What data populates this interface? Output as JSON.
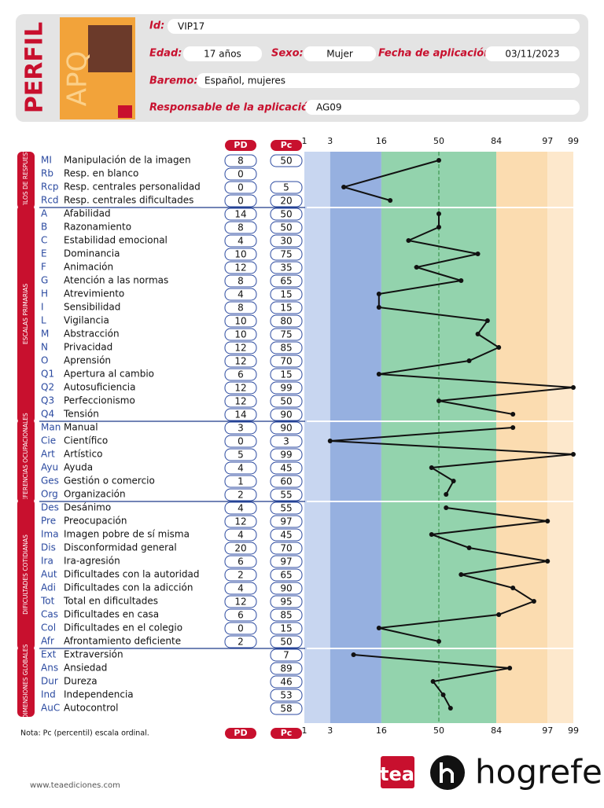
{
  "header": {
    "title": "PERFIL",
    "test": "APQ",
    "fields": [
      {
        "label": "Id:",
        "value": "VIP17"
      },
      {
        "label": "Edad:",
        "value": "17  años"
      },
      {
        "label": "Sexo:",
        "value": "Mujer"
      },
      {
        "label": "Fecha de aplicación:",
        "value": "03/11/2023"
      },
      {
        "label": "Baremo:",
        "value": "Español, mujeres"
      },
      {
        "label": "Responsable de la aplicación:",
        "value": "AG09"
      }
    ]
  },
  "columns": {
    "pd": "PD",
    "pc": "Pc"
  },
  "scale": {
    "ticks": [
      1,
      3,
      16,
      50,
      84,
      97,
      99
    ]
  },
  "groups": [
    {
      "title": "ESTILOS DE RESPUESTA",
      "rows": [
        {
          "code": "MI",
          "name": "Manipulación de la imagen",
          "pd": 8,
          "pc": 50
        },
        {
          "code": "Rb",
          "name": "Resp. en blanco",
          "pd": 0
        },
        {
          "code": "Rcp",
          "name": "Resp. centrales personalidad",
          "pd": 0,
          "pc": 5
        },
        {
          "code": "Rcd",
          "name": "Resp. centrales dificultades",
          "pd": 0,
          "pc": 20
        }
      ]
    },
    {
      "title": "ESCALAS PRIMARIAS",
      "rows": [
        {
          "code": "A",
          "name": "Afabilidad",
          "pd": 14,
          "pc": 50
        },
        {
          "code": "B",
          "name": "Razonamiento",
          "pd": 8,
          "pc": 50
        },
        {
          "code": "C",
          "name": "Estabilidad emocional",
          "pd": 4,
          "pc": 30
        },
        {
          "code": "E",
          "name": "Dominancia",
          "pd": 10,
          "pc": 75
        },
        {
          "code": "F",
          "name": "Animación",
          "pd": 12,
          "pc": 35
        },
        {
          "code": "G",
          "name": "Atención a las normas",
          "pd": 8,
          "pc": 65
        },
        {
          "code": "H",
          "name": "Atrevimiento",
          "pd": 4,
          "pc": 15
        },
        {
          "code": "I",
          "name": "Sensibilidad",
          "pd": 8,
          "pc": 15
        },
        {
          "code": "L",
          "name": "Vigilancia",
          "pd": 10,
          "pc": 80
        },
        {
          "code": "M",
          "name": "Abstracción",
          "pd": 10,
          "pc": 75
        },
        {
          "code": "N",
          "name": "Privacidad",
          "pd": 12,
          "pc": 85
        },
        {
          "code": "O",
          "name": "Aprensión",
          "pd": 12,
          "pc": 70
        },
        {
          "code": "Q1",
          "name": "Apertura al cambio",
          "pd": 6,
          "pc": 15
        },
        {
          "code": "Q2",
          "name": "Autosuficiencia",
          "pd": 12,
          "pc": 99
        },
        {
          "code": "Q3",
          "name": "Perfeccionismo",
          "pd": 12,
          "pc": 50
        },
        {
          "code": "Q4",
          "name": "Tensión",
          "pd": 14,
          "pc": 90
        }
      ]
    },
    {
      "title": "PREFERENCIAS OCUPACIONALES",
      "rows": [
        {
          "code": "Man",
          "name": "Manual",
          "pd": 3,
          "pc": 90
        },
        {
          "code": "Cie",
          "name": "Científico",
          "pd": 0,
          "pc": 3
        },
        {
          "code": "Art",
          "name": "Artístico",
          "pd": 5,
          "pc": 99
        },
        {
          "code": "Ayu",
          "name": "Ayuda",
          "pd": 4,
          "pc": 45
        },
        {
          "code": "Ges",
          "name": "Gestión o comercio",
          "pd": 1,
          "pc": 60
        },
        {
          "code": "Org",
          "name": "Organización",
          "pd": 2,
          "pc": 55
        }
      ]
    },
    {
      "title": "DIFICULTADES COTIDIANAS",
      "rows": [
        {
          "code": "Des",
          "name": "Desánimo",
          "pd": 4,
          "pc": 55
        },
        {
          "code": "Pre",
          "name": "Preocupación",
          "pd": 12,
          "pc": 97
        },
        {
          "code": "Ima",
          "name": "Imagen pobre de sí misma",
          "pd": 4,
          "pc": 45
        },
        {
          "code": "Dis",
          "name": "Disconformidad general",
          "pd": 20,
          "pc": 70
        },
        {
          "code": "Ira",
          "name": "Ira-agresión",
          "pd": 6,
          "pc": 97
        },
        {
          "code": "Aut",
          "name": "Dificultades con la autoridad",
          "pd": 2,
          "pc": 65
        },
        {
          "code": "Adi",
          "name": "Dificultades con la adicción",
          "pd": 4,
          "pc": 90
        },
        {
          "code": "Tot",
          "name": "Total en dificultades",
          "pd": 12,
          "pc": 95
        },
        {
          "code": "Cas",
          "name": "Dificultades en casa",
          "pd": 6,
          "pc": 85
        },
        {
          "code": "Col",
          "name": "Dificultades en el colegio",
          "pd": 0,
          "pc": 15
        },
        {
          "code": "Afr",
          "name": "Afrontamiento deficiente",
          "pd": 2,
          "pc": 50
        }
      ]
    },
    {
      "title": "DIMENSIONES GLOBALES",
      "rows": [
        {
          "code": "Ext",
          "name": "Extraversión",
          "pc": 7
        },
        {
          "code": "Ans",
          "name": "Ansiedad",
          "pc": 89
        },
        {
          "code": "Dur",
          "name": "Dureza",
          "pc": 46
        },
        {
          "code": "Ind",
          "name": "Independencia",
          "pc": 53
        },
        {
          "code": "AuC",
          "name": "Autocontrol",
          "pc": 58
        }
      ]
    }
  ],
  "note": "Nota: Pc (percentil) escala ordinal.",
  "footer": {
    "url": "www.teaediciones.com",
    "logos": [
      "tea",
      "hogrefe"
    ]
  }
}
